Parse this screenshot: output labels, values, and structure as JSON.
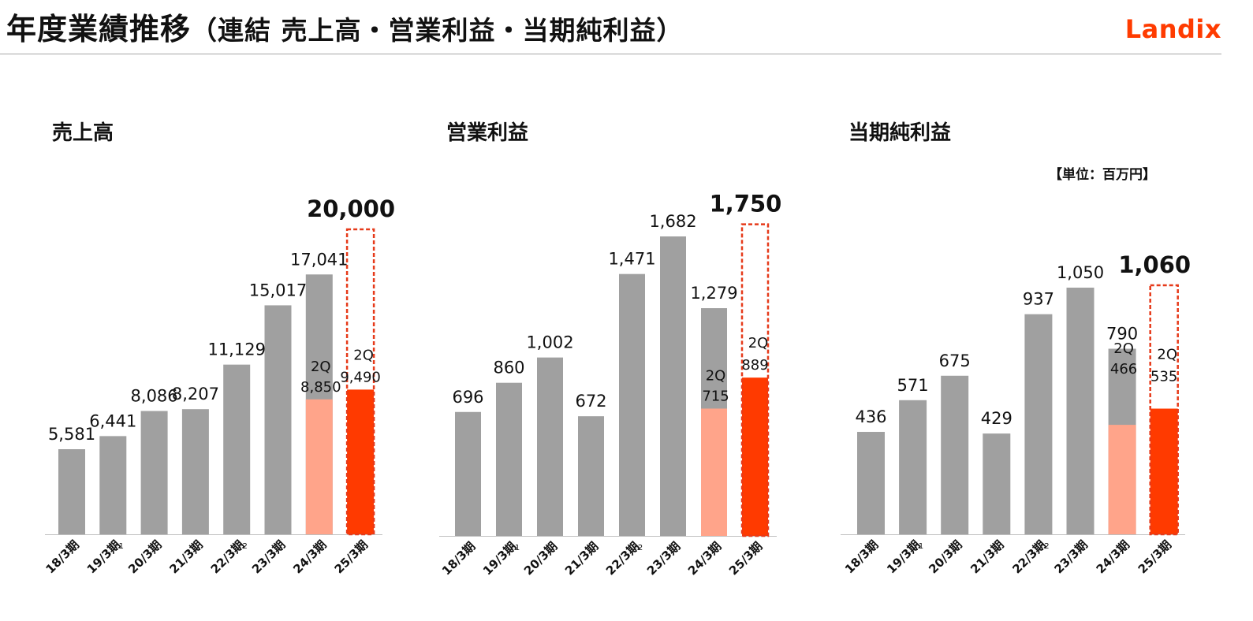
{
  "header": {
    "title_main": "年度業績推移",
    "title_sub": "（連結 売上高・営業利益・当期純利益）",
    "logo": "Landix"
  },
  "unit_label": "【単位：百万円】",
  "colors": {
    "actual": "#a0a0a0",
    "q2_prev": "#ffa48a",
    "q2_current": "#ff3a00",
    "forecast_border": "#e63a1a",
    "axis": "#bfbfbf"
  },
  "chart_data": [
    {
      "type": "bar",
      "title": "売上高",
      "categories": [
        "18/3期",
        "19/3期",
        "20/3期",
        "21/3期",
        "22/3期",
        "23/3期",
        "24/3期",
        "25/3期"
      ],
      "category_notes": [
        "",
        "*1",
        "",
        "",
        "*2",
        "",
        "",
        ""
      ],
      "values": [
        5581,
        6441,
        8086,
        8207,
        11129,
        15017,
        17041,
        null
      ],
      "value_labels": [
        "5,581",
        "6,441",
        "8,086",
        "8,207",
        "11,129",
        "15,017",
        "17,041",
        ""
      ],
      "q2": {
        "label": "2Q",
        "prev_value": 8850,
        "prev_label": "8,850",
        "current_value": 9490,
        "current_label": "9,490"
      },
      "forecast": {
        "value": 20000,
        "label": "20,000"
      },
      "ylim": [
        0,
        22000
      ]
    },
    {
      "type": "bar",
      "title": "営業利益",
      "categories": [
        "18/3期",
        "19/3期",
        "20/3期",
        "21/3期",
        "22/3期",
        "23/3期",
        "24/3期",
        "25/3期"
      ],
      "category_notes": [
        "",
        "*1",
        "",
        "",
        "*2",
        "",
        "",
        ""
      ],
      "values": [
        696,
        860,
        1002,
        672,
        1471,
        1682,
        1279,
        null
      ],
      "value_labels": [
        "696",
        "860",
        "1,002",
        "672",
        "1,471",
        "1,682",
        "1,279",
        ""
      ],
      "q2": {
        "label": "2Q",
        "prev_value": 715,
        "prev_label": "715",
        "current_value": 889,
        "current_label": "889"
      },
      "forecast": {
        "value": 1750,
        "label": "1,750"
      },
      "ylim": [
        0,
        2000
      ]
    },
    {
      "type": "bar",
      "title": "当期純利益",
      "categories": [
        "18/3期",
        "19/3期",
        "20/3期",
        "21/3期",
        "22/3期",
        "23/3期",
        "24/3期",
        "25/3期"
      ],
      "category_notes": [
        "",
        "*1",
        "",
        "",
        "*2",
        "",
        "",
        ""
      ],
      "values": [
        436,
        571,
        675,
        429,
        937,
        1050,
        790,
        null
      ],
      "value_labels": [
        "436",
        "571",
        "675",
        "429",
        "937",
        "1,050",
        "790",
        ""
      ],
      "q2": {
        "label": "2Q",
        "prev_value": 466,
        "prev_label": "466",
        "current_value": 535,
        "current_label": "535"
      },
      "forecast": {
        "value": 1060,
        "label": "1,060"
      },
      "ylim": [
        0,
        1300
      ]
    }
  ]
}
